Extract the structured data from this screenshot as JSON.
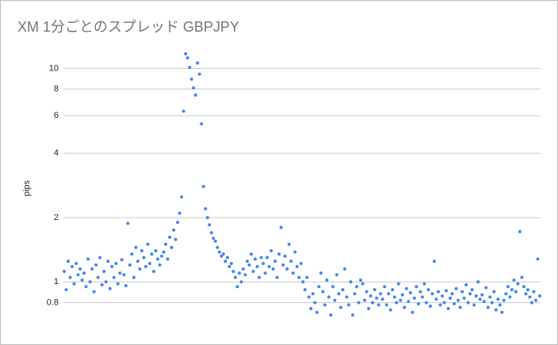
{
  "chart_data": {
    "type": "scatter",
    "title": "XM 1分ごとのスプレッド GBPJPY",
    "y_label": "pips",
    "color": "#4285f4",
    "log_y": true,
    "grid": true,
    "ylim": [
      0.66,
      11.8
    ],
    "yticks": [
      0.8,
      1,
      2,
      4,
      6,
      8,
      10
    ],
    "values": [
      1.12,
      0.92,
      1.25,
      1.05,
      1.18,
      0.98,
      1.22,
      1.08,
      1.15,
      1.02,
      1.1,
      0.95,
      1.28,
      1.0,
      1.15,
      0.9,
      1.2,
      1.05,
      1.3,
      0.97,
      1.12,
      1.0,
      1.25,
      0.93,
      1.18,
      1.05,
      1.22,
      0.98,
      1.1,
      1.27,
      1.08,
      0.96,
      1.88,
      1.2,
      1.35,
      1.05,
      1.45,
      1.25,
      1.15,
      1.4,
      1.3,
      1.18,
      1.5,
      1.22,
      1.35,
      1.12,
      1.4,
      1.28,
      1.2,
      1.32,
      1.38,
      1.5,
      1.28,
      1.62,
      1.45,
      1.75,
      1.58,
      1.9,
      2.1,
      2.5,
      6.3,
      11.7,
      11.2,
      10.1,
      8.9,
      8.1,
      7.5,
      10.6,
      9.4,
      5.5,
      2.8,
      2.2,
      2.0,
      1.85,
      1.7,
      1.6,
      1.55,
      1.45,
      1.38,
      1.32,
      1.35,
      1.25,
      1.3,
      1.18,
      1.22,
      1.12,
      1.05,
      0.95,
      1.1,
      1.0,
      1.15,
      1.08,
      1.25,
      1.2,
      1.35,
      1.12,
      1.28,
      1.18,
      1.05,
      1.3,
      1.22,
      1.1,
      1.3,
      1.18,
      1.4,
      1.15,
      1.25,
      1.05,
      1.35,
      1.8,
      1.2,
      1.32,
      1.15,
      1.5,
      1.25,
      1.1,
      1.38,
      1.18,
      1.05,
      1.22,
      1.0,
      0.92,
      1.05,
      0.85,
      0.75,
      0.88,
      0.8,
      0.72,
      0.95,
      1.1,
      0.9,
      0.78,
      1.02,
      0.85,
      0.7,
      0.95,
      0.82,
      1.08,
      0.88,
      0.76,
      0.92,
      1.15,
      0.85,
      0.78,
      1.0,
      0.7,
      0.88,
      0.95,
      0.8,
      1.02,
      0.98,
      0.82,
      0.9,
      0.75,
      0.86,
      0.8,
      0.92,
      0.84,
      0.78,
      0.88,
      0.83,
      0.95,
      0.78,
      0.88,
      0.74,
      0.92,
      0.85,
      0.8,
      0.98,
      0.82,
      0.87,
      0.76,
      0.93,
      0.81,
      0.89,
      0.72,
      0.84,
      0.95,
      0.79,
      0.9,
      0.85,
      0.98,
      0.8,
      0.92,
      0.77,
      0.88,
      1.25,
      0.83,
      0.9,
      0.78,
      0.86,
      0.8,
      0.91,
      0.75,
      0.84,
      0.88,
      0.79,
      0.93,
      0.82,
      0.76,
      0.9,
      0.84,
      0.97,
      0.8,
      0.88,
      0.92,
      0.78,
      0.86,
      1.0,
      0.83,
      0.87,
      0.81,
      0.94,
      0.76,
      0.85,
      0.8,
      0.9,
      0.74,
      0.83,
      0.78,
      0.72,
      0.82,
      0.88,
      0.95,
      0.85,
      0.92,
      1.02,
      0.9,
      0.98,
      1.72,
      1.05,
      0.95,
      0.88,
      0.92,
      0.85,
      0.8,
      0.9,
      0.82,
      1.28,
      0.86
    ]
  }
}
